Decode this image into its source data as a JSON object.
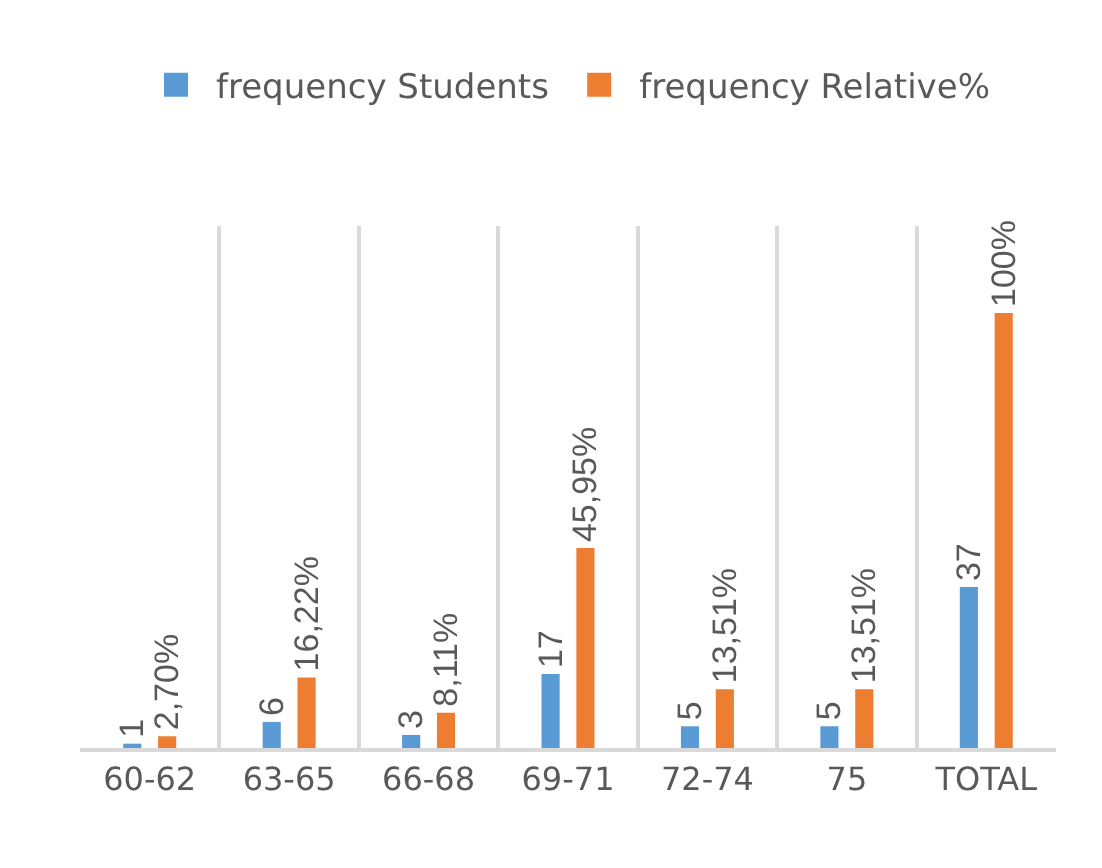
{
  "chart_data": {
    "type": "bar",
    "categories": [
      "60-62",
      "63-65",
      "66-68",
      "69-71",
      "72-74",
      "75",
      "TOTAL"
    ],
    "series": [
      {
        "name": "frequency Students",
        "color": "#5b9bd5",
        "values": [
          1,
          6,
          3,
          17,
          5,
          5,
          37
        ],
        "value_labels": [
          "1",
          "6",
          "3",
          "17",
          "5",
          "5",
          "37"
        ]
      },
      {
        "name": "frequency Relative%",
        "color": "#ed7d31",
        "values": [
          2.7,
          16.22,
          8.11,
          45.95,
          13.51,
          13.51,
          100
        ],
        "value_labels": [
          "2,70%",
          "16,22%",
          "8,11%",
          "45,95%",
          "13,51%",
          "13,51%",
          "100%"
        ]
      }
    ],
    "ylim": [
      0,
      120
    ],
    "grid": "x",
    "legend": "top"
  }
}
